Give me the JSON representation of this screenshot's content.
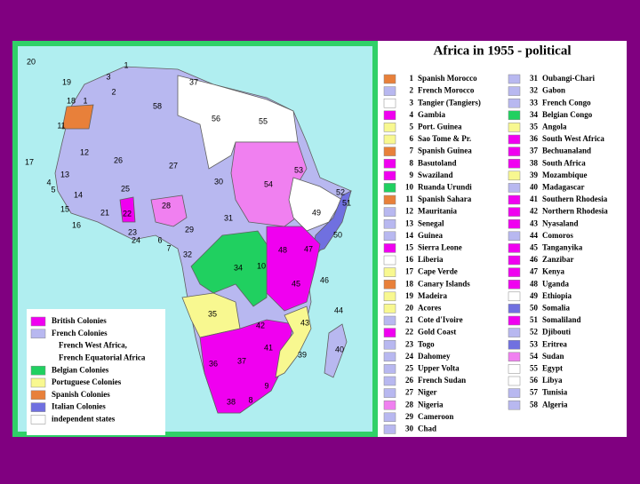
{
  "title": "Africa in 1955 - political",
  "legend": {
    "items": [
      {
        "number": 1,
        "name": "Spanish Morocco",
        "color": "#e8803a"
      },
      {
        "number": 2,
        "name": "French Morocco",
        "color": "#b8b8f0"
      },
      {
        "number": 3,
        "name": "Tangier (Tangiers)",
        "color": "#ffffff"
      },
      {
        "number": 4,
        "name": "Gambia",
        "color": "#f000f0"
      },
      {
        "number": 5,
        "name": "Port. Guinea",
        "color": "#f8f890"
      },
      {
        "number": 6,
        "name": "Sao Tome & Pr.",
        "color": "#f8f890"
      },
      {
        "number": 7,
        "name": "Spanish Guinea",
        "color": "#e8803a"
      },
      {
        "number": 8,
        "name": "Basutoland",
        "color": "#f000f0"
      },
      {
        "number": 9,
        "name": "Swaziland",
        "color": "#f000f0"
      },
      {
        "number": 10,
        "name": "Ruanda Urundi",
        "color": "#20d060"
      },
      {
        "number": 11,
        "name": "Spanish Sahara",
        "color": "#e8803a"
      },
      {
        "number": 12,
        "name": "Mauritania",
        "color": "#b8b8f0"
      },
      {
        "number": 13,
        "name": "Senegal",
        "color": "#b8b8f0"
      },
      {
        "number": 14,
        "name": "Guinea",
        "color": "#b8b8f0"
      },
      {
        "number": 15,
        "name": "Sierra Leone",
        "color": "#f000f0"
      },
      {
        "number": 16,
        "name": "Liberia",
        "color": "#ffffff"
      },
      {
        "number": 17,
        "name": "Cape Verde",
        "color": "#f8f890"
      },
      {
        "number": 18,
        "name": "Canary Islands",
        "color": "#e8803a"
      },
      {
        "number": 19,
        "name": "Madeira",
        "color": "#f8f890"
      },
      {
        "number": 20,
        "name": "Acores",
        "color": "#f8f890"
      },
      {
        "number": 21,
        "name": "Cote d'Ivoire",
        "color": "#b8b8f0"
      },
      {
        "number": 22,
        "name": "Gold Coast",
        "color": "#f000f0"
      },
      {
        "number": 23,
        "name": "Togo",
        "color": "#b8b8f0"
      },
      {
        "number": 24,
        "name": "Dahomey",
        "color": "#b8b8f0"
      },
      {
        "number": 25,
        "name": "Upper Volta",
        "color": "#b8b8f0"
      },
      {
        "number": 26,
        "name": "French Sudan",
        "color": "#b8b8f0"
      },
      {
        "number": 27,
        "name": "Niger",
        "color": "#b8b8f0"
      },
      {
        "number": 28,
        "name": "Nigeria",
        "color": "#f080f0"
      },
      {
        "number": 29,
        "name": "Cameroon",
        "color": "#b8b8f0"
      },
      {
        "number": 30,
        "name": "Chad",
        "color": "#b8b8f0"
      },
      {
        "number": 31,
        "name": "Oubangi-Chari",
        "color": "#b8b8f0"
      },
      {
        "number": 32,
        "name": "Gabon",
        "color": "#b8b8f0"
      },
      {
        "number": 33,
        "name": "French Congo",
        "color": "#b8b8f0"
      },
      {
        "number": 34,
        "name": "Belgian Congo",
        "color": "#20d060"
      },
      {
        "number": 35,
        "name": "Angola",
        "color": "#f8f890"
      },
      {
        "number": 36,
        "name": "South West Africa",
        "color": "#f000f0"
      },
      {
        "number": 37,
        "name": "Bechuanaland",
        "color": "#f000f0"
      },
      {
        "number": 38,
        "name": "South Africa",
        "color": "#f000f0"
      },
      {
        "number": 39,
        "name": "Mozambique",
        "color": "#f8f890"
      },
      {
        "number": 40,
        "name": "Madagascar",
        "color": "#b8b8f0"
      },
      {
        "number": 41,
        "name": "Southern Rhodesia",
        "color": "#f000f0"
      },
      {
        "number": 42,
        "name": "Northern Rhodesia",
        "color": "#f000f0"
      },
      {
        "number": 43,
        "name": "Nyasaland",
        "color": "#f000f0"
      },
      {
        "number": 44,
        "name": "Comoros",
        "color": "#b8b8f0"
      },
      {
        "number": 45,
        "name": "Tanganyika",
        "color": "#f000f0"
      },
      {
        "number": 46,
        "name": "Zanzibar",
        "color": "#f000f0"
      },
      {
        "number": 47,
        "name": "Kenya",
        "color": "#f000f0"
      },
      {
        "number": 48,
        "name": "Uganda",
        "color": "#f000f0"
      },
      {
        "number": 49,
        "name": "Ethiopia",
        "color": "#ffffff"
      },
      {
        "number": 50,
        "name": "Somalia",
        "color": "#7070e0"
      },
      {
        "number": 51,
        "name": "Somaliland",
        "color": "#f000f0"
      },
      {
        "number": 52,
        "name": "Djibouti",
        "color": "#b8b8f0"
      },
      {
        "number": 53,
        "name": "Eritrea",
        "color": "#7070e0"
      },
      {
        "number": 54,
        "name": "Sudan",
        "color": "#f080f0"
      },
      {
        "number": 55,
        "name": "Egypt",
        "color": "#ffffff"
      },
      {
        "number": 56,
        "name": "Libya",
        "color": "#ffffff"
      },
      {
        "number": 57,
        "name": "Tunisia",
        "color": "#b8b8f0"
      },
      {
        "number": 58,
        "name": "Algeria",
        "color": "#b8b8f0"
      }
    ]
  },
  "map_legend": {
    "items": [
      {
        "label": "British Colonies",
        "color": "#f000f0"
      },
      {
        "label": "French Colonies",
        "color": "#b8b8f0"
      },
      {
        "label": "French West Africa,",
        "color": "#b8b8f0"
      },
      {
        "label": "French Equatorial Africa",
        "color": "#b8b8f0"
      },
      {
        "label": "Belgian Colonies",
        "color": "#20d060"
      },
      {
        "label": "Portuguese Colonies",
        "color": "#f8f890"
      },
      {
        "label": "Spanish Colonies",
        "color": "#e8803a"
      },
      {
        "label": "Italian Colonies",
        "color": "#7070e0"
      },
      {
        "label": "independent states",
        "color": "#ffffff"
      }
    ]
  },
  "map_labels": [
    "20",
    "1",
    "3",
    "19",
    "37",
    "2",
    "18",
    "1",
    "58",
    "56",
    "55",
    "11",
    "12",
    "26",
    "27",
    "53",
    "17",
    "13",
    "4",
    "5",
    "30",
    "54",
    "52",
    "25",
    "14",
    "51",
    "49",
    "28",
    "21",
    "22",
    "31",
    "15",
    "16",
    "29",
    "23",
    "24",
    "50",
    "6",
    "7",
    "32",
    "48",
    "47",
    "10",
    "34",
    "45",
    "46",
    "44",
    "35",
    "43",
    "42",
    "41",
    "39",
    "40",
    "37",
    "36",
    "9",
    "38",
    "8"
  ]
}
